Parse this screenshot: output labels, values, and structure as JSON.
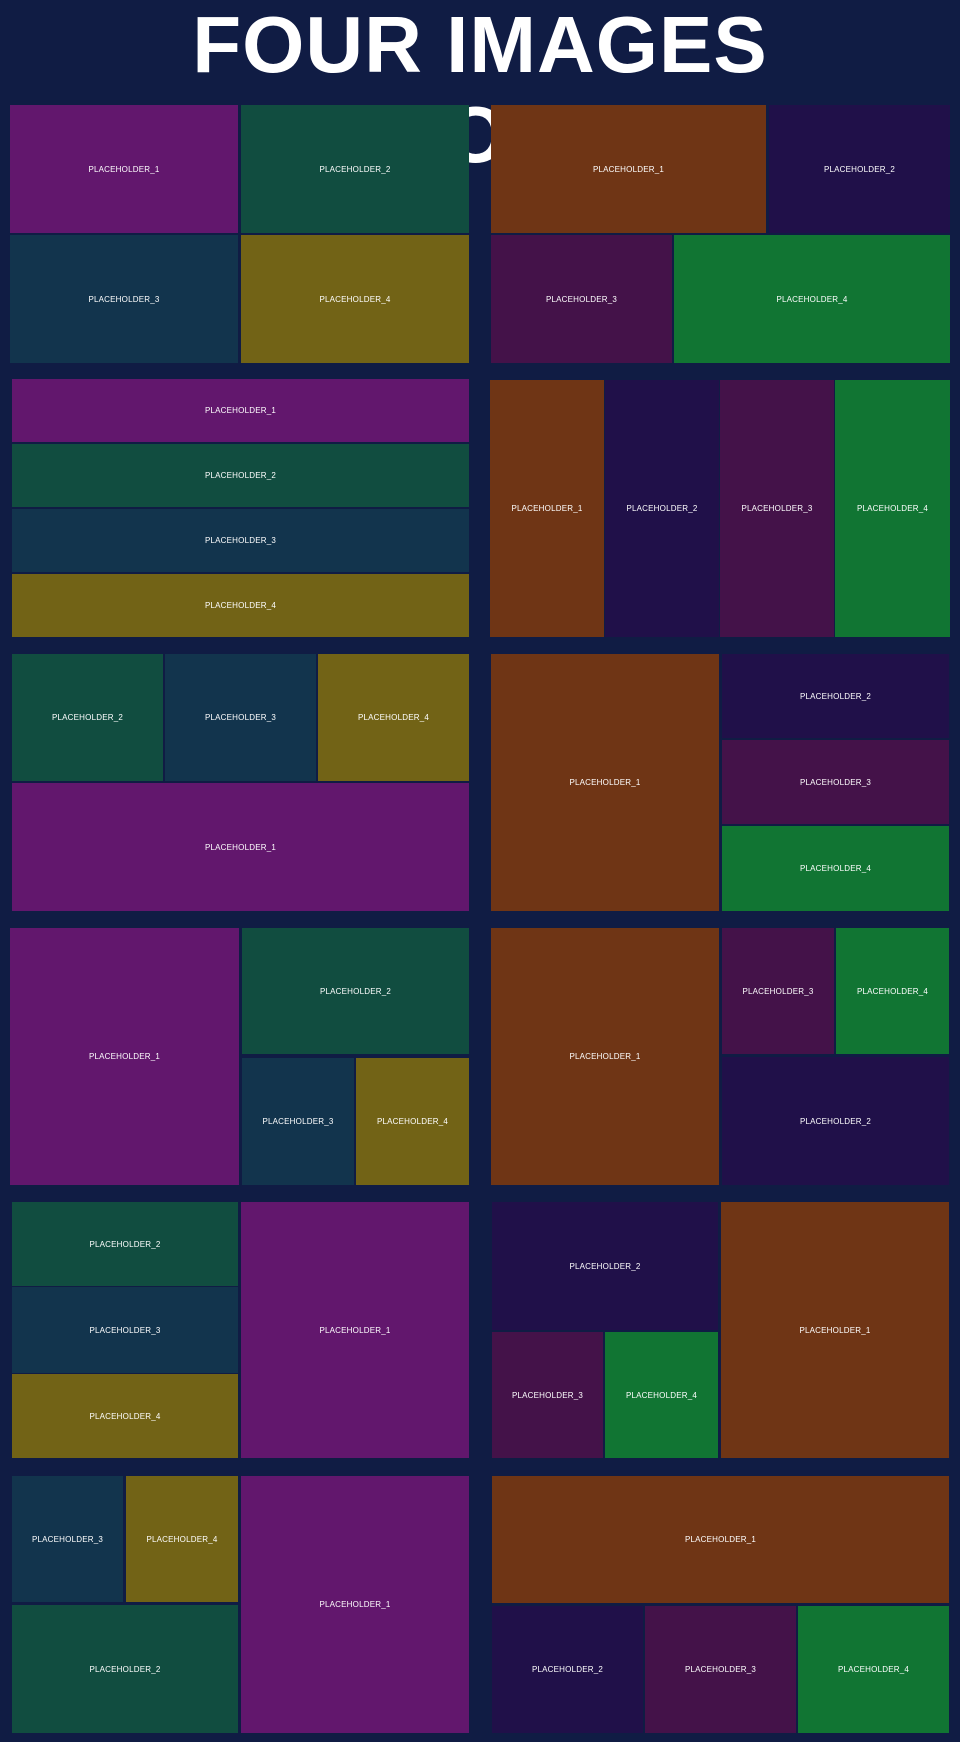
{
  "header": {
    "title": "FOUR IMAGES LAYOUTS"
  },
  "labels": {
    "p1": "PLACEHOLDER_1",
    "p2": "PLACEHOLDER_2",
    "p3": "PLACEHOLDER_3",
    "p4": "PLACEHOLDER_4"
  },
  "colors": {
    "purple": "#62176d",
    "dark_green": "#114d40",
    "navy": "#12344d",
    "olive": "#726316",
    "orange": "#6f3515",
    "indigo": "#201049",
    "plum": "#441249",
    "green": "#117533",
    "background": "#101c44"
  }
}
